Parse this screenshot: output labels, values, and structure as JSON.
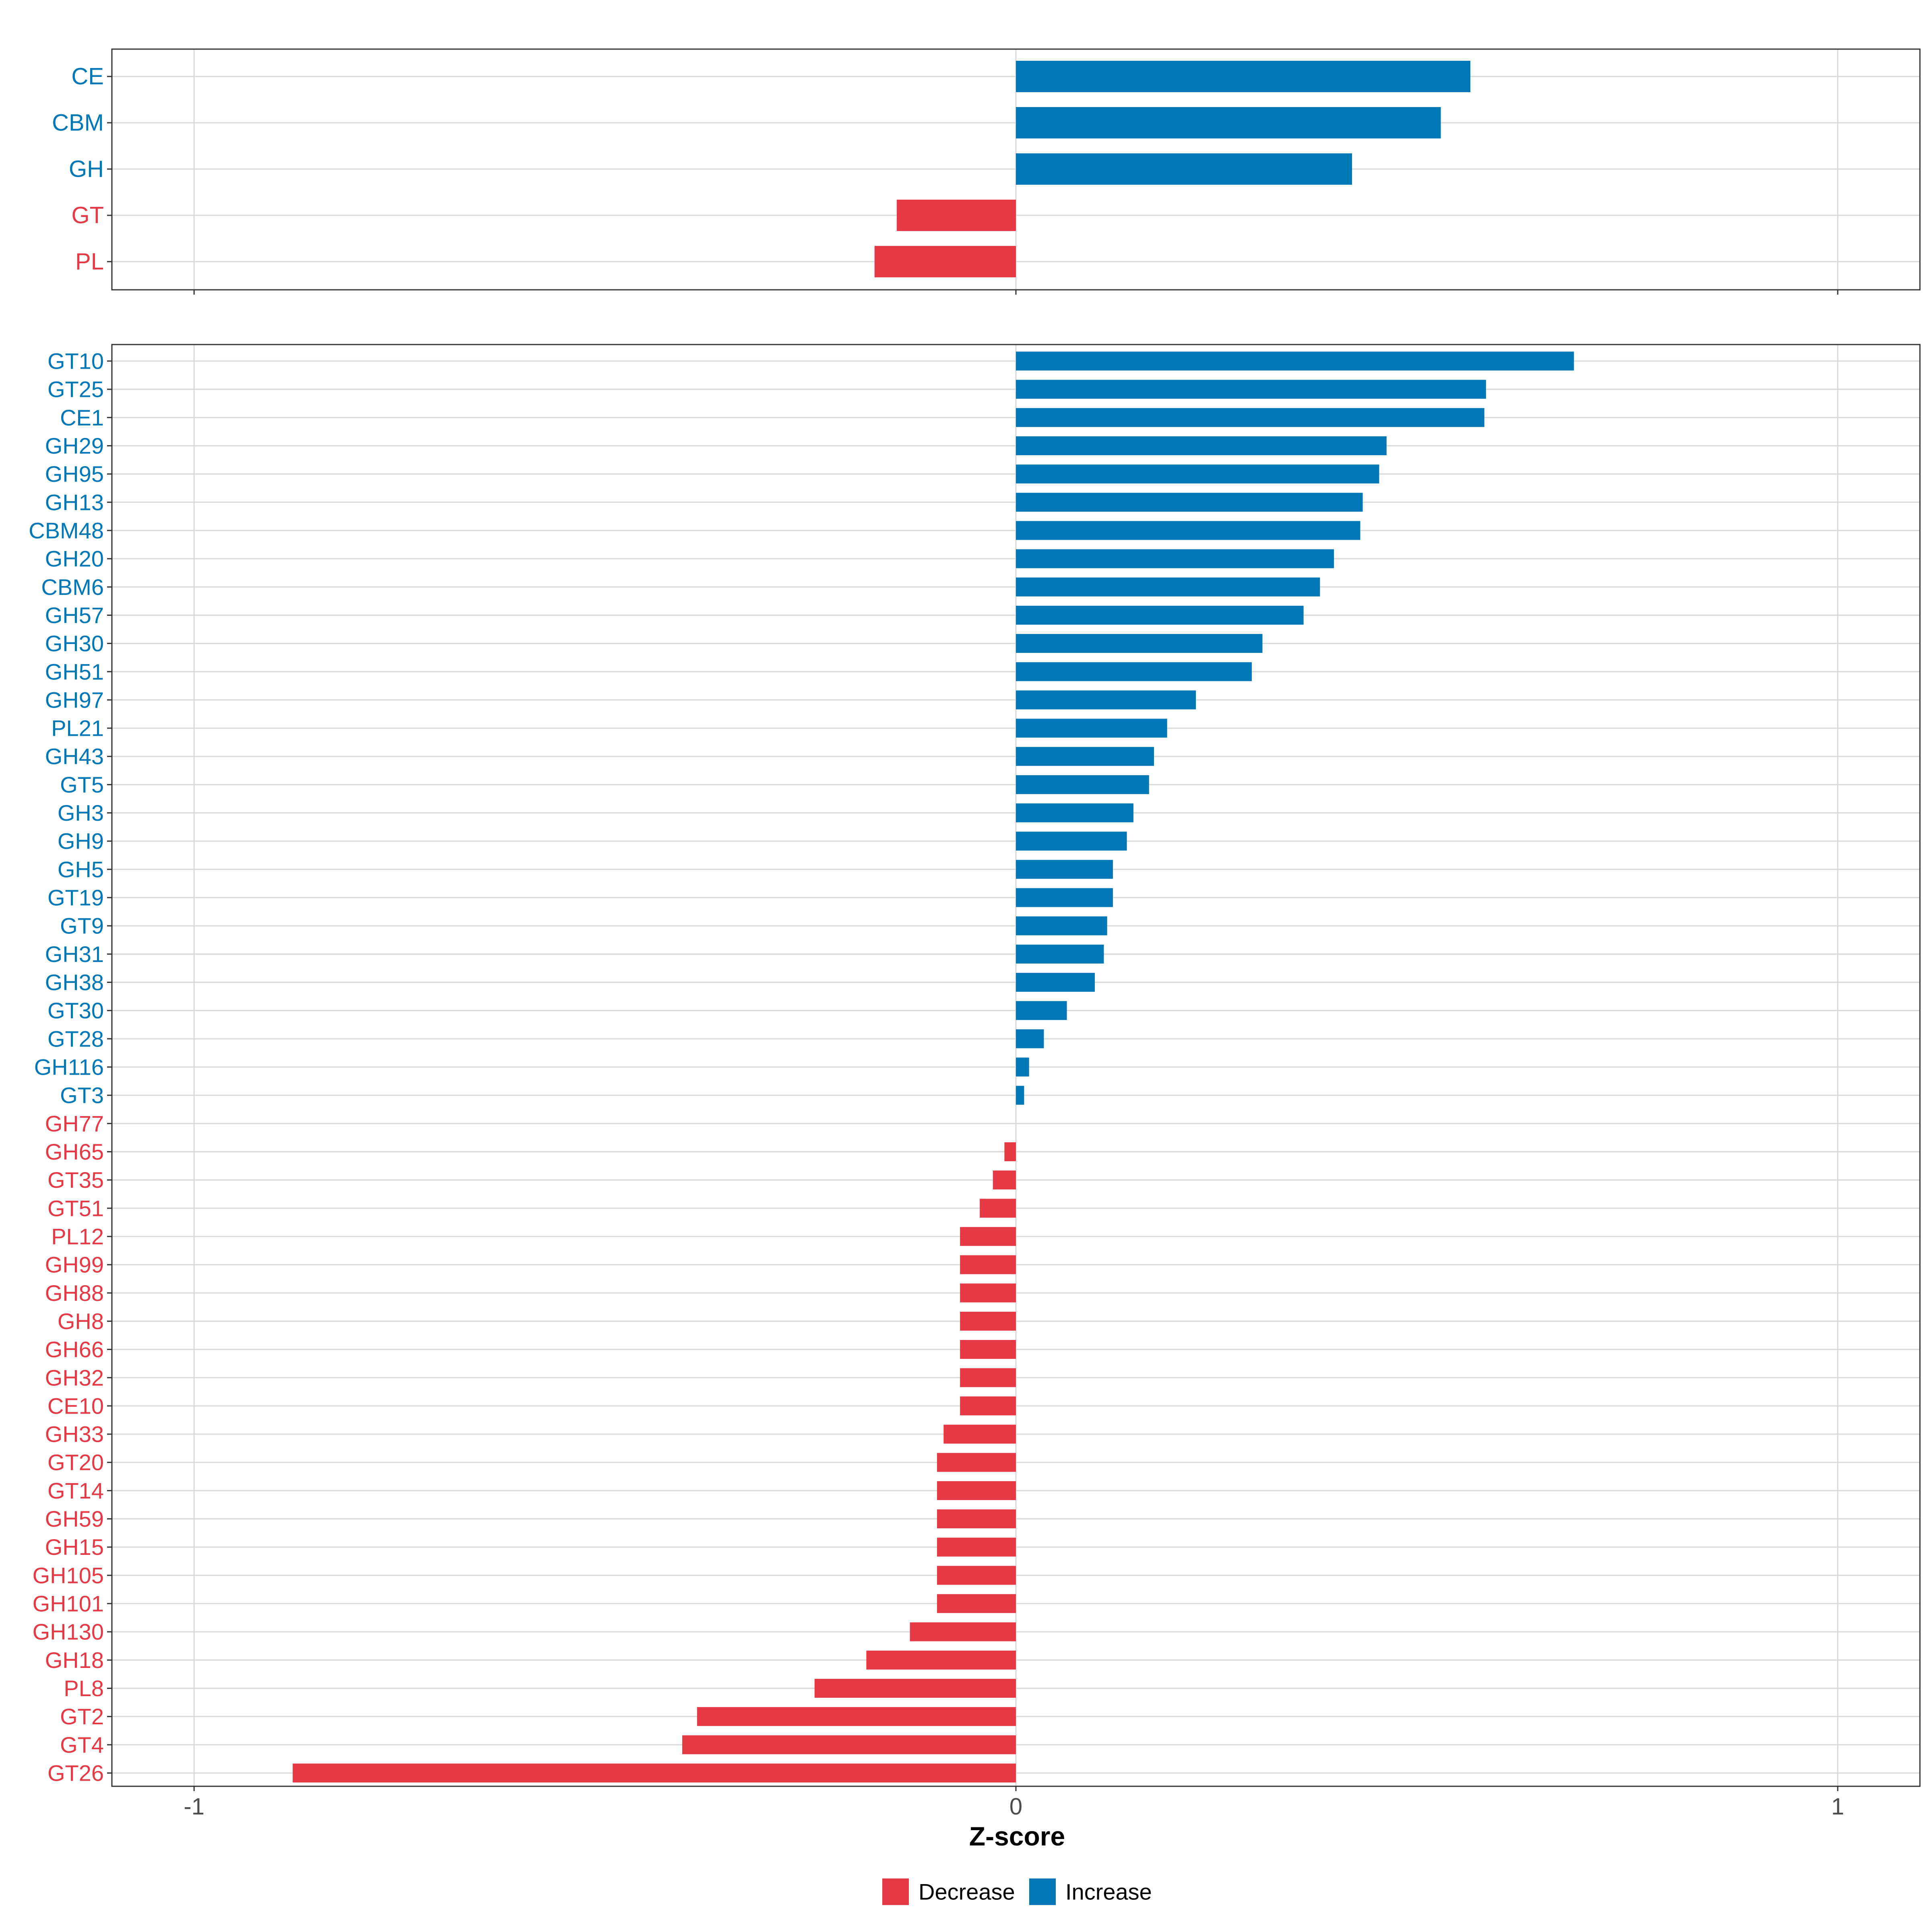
{
  "chart_data": [
    {
      "type": "bar",
      "orientation": "horizontal",
      "panel": "top",
      "categories": [
        "CE",
        "CBM",
        "GH",
        "GT",
        "PL"
      ],
      "values": [
        0.553,
        0.517,
        0.409,
        -0.145,
        -0.172
      ],
      "xlim": [
        -1.1,
        1.1
      ],
      "xticks": [
        -1,
        0,
        1
      ],
      "grid": true
    },
    {
      "type": "bar",
      "orientation": "horizontal",
      "panel": "bottom",
      "categories": [
        "GT10",
        "GT25",
        "CE1",
        "GH29",
        "GH95",
        "GH13",
        "CBM48",
        "GH20",
        "CBM6",
        "GH57",
        "GH30",
        "GH51",
        "GH97",
        "PL21",
        "GH43",
        "GT5",
        "GH3",
        "GH9",
        "GH5",
        "GT19",
        "GT9",
        "GH31",
        "GH38",
        "GT30",
        "GT28",
        "GH116",
        "GT3",
        "GH77",
        "GH65",
        "GT35",
        "GT51",
        "PL12",
        "GH99",
        "GH88",
        "GH8",
        "GH66",
        "GH32",
        "CE10",
        "GH33",
        "GT20",
        "GT14",
        "GH59",
        "GH15",
        "GH105",
        "GH101",
        "GH130",
        "GH18",
        "PL8",
        "GT2",
        "GT4",
        "GT26"
      ],
      "values": [
        0.679,
        0.572,
        0.57,
        0.451,
        0.442,
        0.422,
        0.419,
        0.387,
        0.37,
        0.35,
        0.3,
        0.287,
        0.219,
        0.184,
        0.168,
        0.162,
        0.143,
        0.135,
        0.118,
        0.118,
        0.111,
        0.107,
        0.096,
        0.062,
        0.034,
        0.016,
        0.01,
        0.0,
        -0.014,
        -0.028,
        -0.044,
        -0.068,
        -0.068,
        -0.068,
        -0.068,
        -0.068,
        -0.068,
        -0.068,
        -0.088,
        -0.096,
        -0.096,
        -0.096,
        -0.096,
        -0.096,
        -0.096,
        -0.129,
        -0.182,
        -0.245,
        -0.388,
        -0.406,
        -0.88
      ],
      "xlim": [
        -1.1,
        1.1
      ],
      "xticks": [
        -1,
        0,
        1
      ],
      "xlabel": "Z-score",
      "grid": true
    }
  ],
  "tick_labels": [
    "-1",
    "0",
    "1"
  ],
  "legend": {
    "position": "bottom",
    "items": [
      {
        "label": "Decrease",
        "color": "#E63946"
      },
      {
        "label": "Increase",
        "color": "#0077B6"
      }
    ]
  },
  "colors": {
    "increase": "#0077B6",
    "decrease": "#E63946",
    "grid": "#D9D9D9",
    "border": "#333333",
    "tick_text": "#4D4D4D"
  }
}
